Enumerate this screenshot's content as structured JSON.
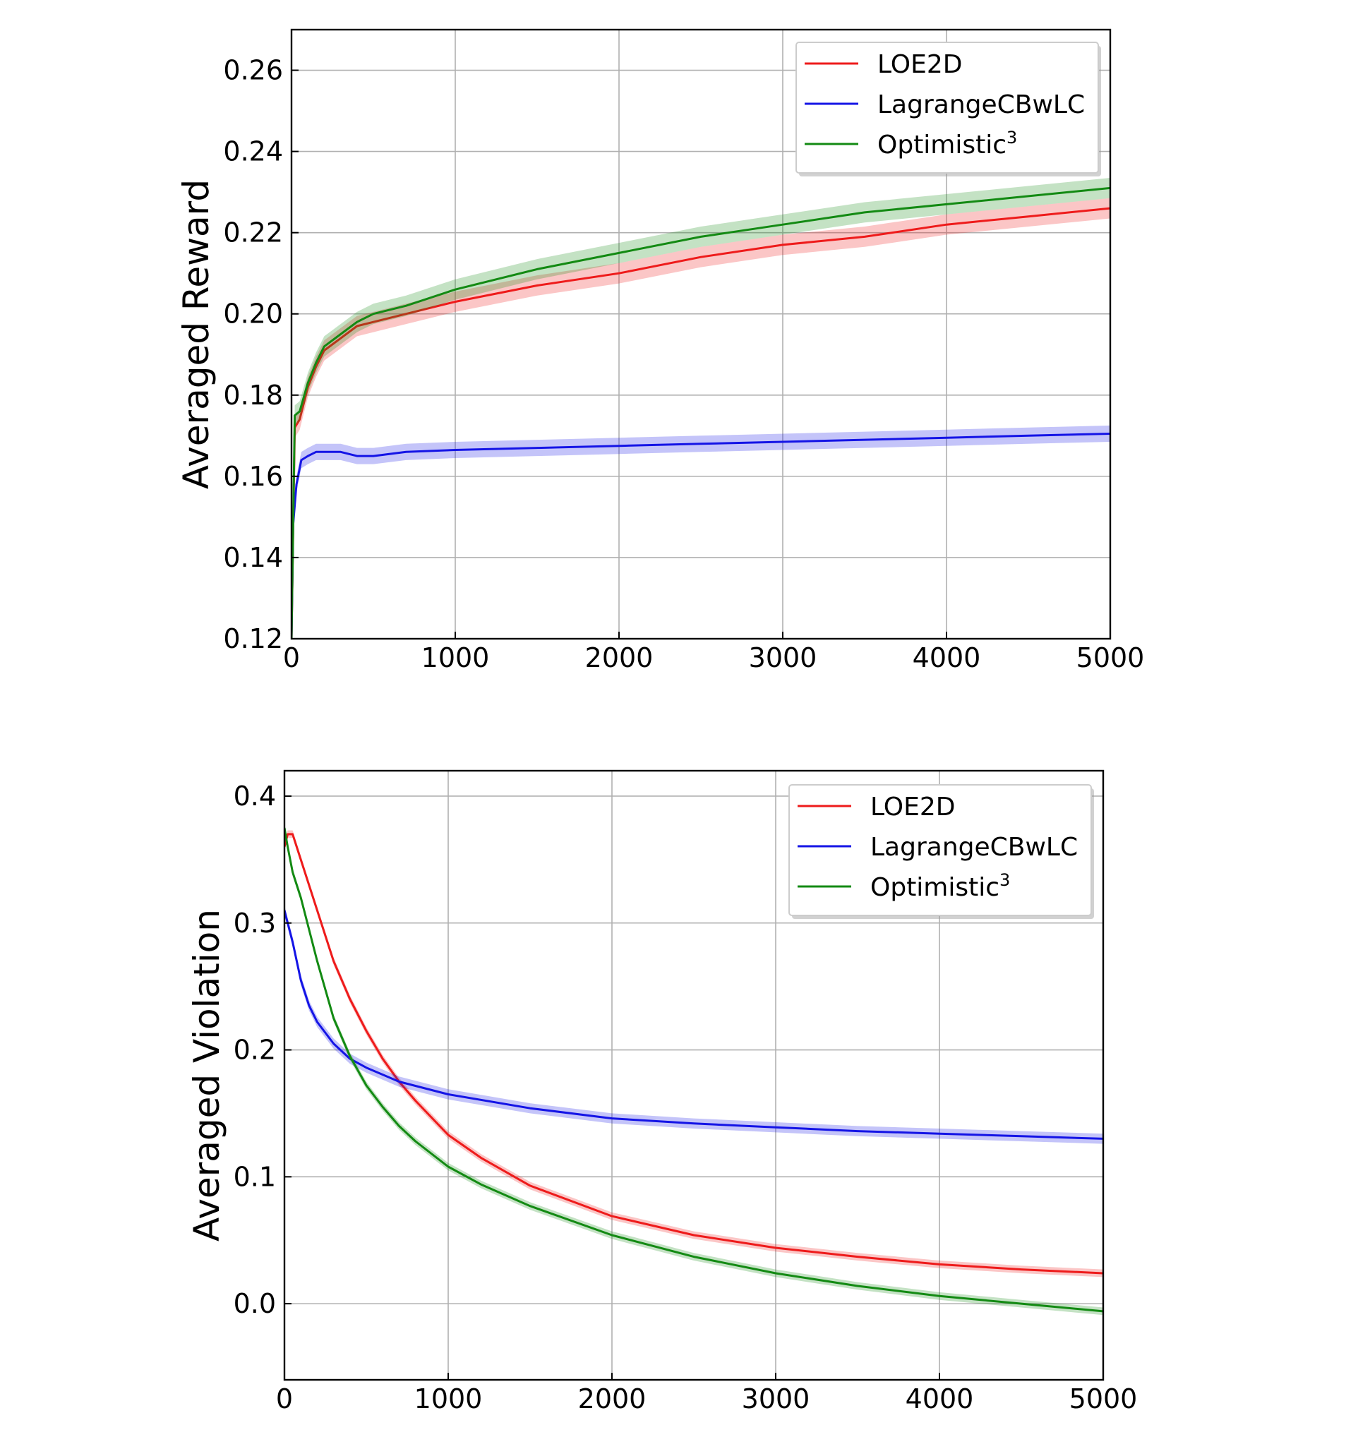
{
  "chart_data": [
    {
      "type": "line",
      "ylabel": "Averaged Reward",
      "xlabel": "",
      "xlim": [
        0,
        5000
      ],
      "ylim": [
        0.12,
        0.27
      ],
      "xticks": [
        0,
        1000,
        2000,
        3000,
        4000,
        5000
      ],
      "yticks": [
        0.12,
        0.14,
        0.16,
        0.18,
        0.2,
        0.22,
        0.24,
        0.26
      ],
      "ytick_labels": [
        "0.12",
        "0.14",
        "0.16",
        "0.18",
        "0.20",
        "0.22",
        "0.24",
        "0.26"
      ],
      "xtick_labels": [
        "0",
        "1000",
        "2000",
        "3000",
        "4000",
        "5000"
      ],
      "grid": true,
      "legend_position": "top-right",
      "series": [
        {
          "name": "LOE2D",
          "color": "#ee1b1b",
          "band": 0.0025,
          "x": [
            0,
            20,
            50,
            100,
            150,
            200,
            300,
            400,
            500,
            700,
            1000,
            1500,
            2000,
            2500,
            3000,
            3500,
            4000,
            4500,
            5000
          ],
          "y": [
            0.12,
            0.172,
            0.174,
            0.182,
            0.187,
            0.191,
            0.194,
            0.197,
            0.198,
            0.2,
            0.203,
            0.207,
            0.21,
            0.214,
            0.217,
            0.219,
            0.222,
            0.224,
            0.226
          ]
        },
        {
          "name": "LagrangeCBwLC",
          "color": "#1414e6",
          "band": 0.002,
          "x": [
            0,
            10,
            30,
            60,
            100,
            150,
            200,
            300,
            400,
            500,
            700,
            1000,
            1500,
            2000,
            2500,
            3000,
            3500,
            4000,
            4500,
            5000
          ],
          "y": [
            0.12,
            0.148,
            0.158,
            0.164,
            0.165,
            0.166,
            0.166,
            0.166,
            0.165,
            0.165,
            0.166,
            0.1665,
            0.167,
            0.1675,
            0.168,
            0.1685,
            0.169,
            0.1695,
            0.17,
            0.1705
          ]
        },
        {
          "name": "Optimistic",
          "name_sup": "3",
          "color": "#138a13",
          "band": 0.0025,
          "x": [
            0,
            20,
            50,
            100,
            150,
            200,
            300,
            400,
            500,
            700,
            1000,
            1500,
            2000,
            2500,
            3000,
            3500,
            4000,
            4500,
            5000
          ],
          "y": [
            0.12,
            0.175,
            0.176,
            0.183,
            0.188,
            0.192,
            0.195,
            0.198,
            0.2,
            0.202,
            0.206,
            0.211,
            0.215,
            0.219,
            0.222,
            0.225,
            0.227,
            0.229,
            0.231
          ]
        }
      ]
    },
    {
      "type": "line",
      "ylabel": "Averaged Violation",
      "xlabel": "",
      "xlim": [
        0,
        5000
      ],
      "ylim": [
        -0.06,
        0.42
      ],
      "xticks": [
        0,
        1000,
        2000,
        3000,
        4000,
        5000
      ],
      "yticks": [
        0.0,
        0.1,
        0.2,
        0.3,
        0.4
      ],
      "ytick_labels": [
        "0.0",
        "0.1",
        "0.2",
        "0.3",
        "0.4"
      ],
      "xtick_labels": [
        "0",
        "1000",
        "2000",
        "3000",
        "4000",
        "5000"
      ],
      "grid": true,
      "legend_position": "top-right",
      "series": [
        {
          "name": "LOE2D",
          "color": "#ee1b1b",
          "band": 0.003,
          "x": [
            0,
            20,
            50,
            100,
            200,
            300,
            400,
            500,
            600,
            700,
            800,
            1000,
            1200,
            1500,
            2000,
            2500,
            3000,
            3500,
            4000,
            4500,
            5000
          ],
          "y": [
            0.36,
            0.37,
            0.37,
            0.35,
            0.31,
            0.27,
            0.24,
            0.215,
            0.193,
            0.175,
            0.16,
            0.133,
            0.115,
            0.093,
            0.069,
            0.054,
            0.044,
            0.037,
            0.031,
            0.027,
            0.024
          ]
        },
        {
          "name": "LagrangeCBwLC",
          "color": "#1414e6",
          "band": 0.004,
          "x": [
            0,
            20,
            50,
            100,
            150,
            200,
            300,
            400,
            500,
            700,
            1000,
            1500,
            2000,
            2500,
            3000,
            3500,
            4000,
            4500,
            5000
          ],
          "y": [
            0.31,
            0.3,
            0.285,
            0.255,
            0.235,
            0.222,
            0.205,
            0.193,
            0.186,
            0.175,
            0.165,
            0.154,
            0.146,
            0.142,
            0.139,
            0.136,
            0.134,
            0.132,
            0.13
          ]
        },
        {
          "name": "Optimistic",
          "name_sup": "3",
          "color": "#138a13",
          "band": 0.003,
          "x": [
            0,
            20,
            50,
            100,
            150,
            200,
            300,
            400,
            500,
            600,
            700,
            800,
            1000,
            1200,
            1500,
            2000,
            2500,
            3000,
            3500,
            4000,
            4500,
            5000
          ],
          "y": [
            0.375,
            0.36,
            0.34,
            0.32,
            0.295,
            0.27,
            0.225,
            0.195,
            0.172,
            0.155,
            0.14,
            0.128,
            0.108,
            0.094,
            0.077,
            0.054,
            0.037,
            0.024,
            0.014,
            0.006,
            0.0,
            -0.006
          ]
        }
      ]
    }
  ]
}
